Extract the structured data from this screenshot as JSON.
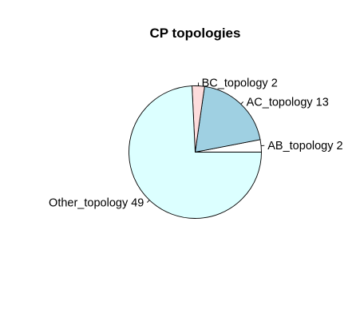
{
  "chart_data": {
    "type": "pie",
    "title": "CP topologies",
    "start_angle_deg": 0,
    "direction": "counterclockwise",
    "slices": [
      {
        "label": "AB_topology 2",
        "value": 2,
        "color": "#ffffff"
      },
      {
        "label": "AC_topology 13",
        "value": 13,
        "color": "#9fd0e2"
      },
      {
        "label": "BC_topology 2",
        "value": 2,
        "color": "#fddcdc"
      },
      {
        "label": "Other_topology 49",
        "value": 49,
        "color": "#dcffff"
      }
    ]
  }
}
